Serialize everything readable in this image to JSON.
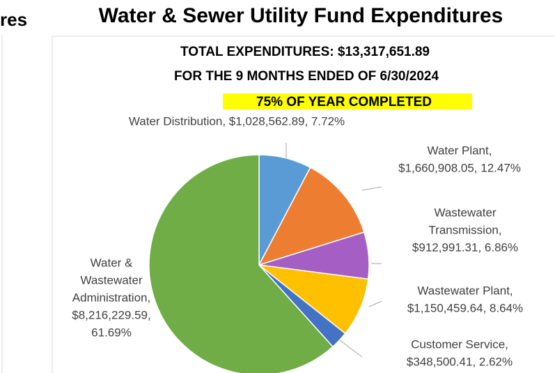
{
  "left_fragment": "res",
  "chart_data": {
    "type": "pie",
    "title": "Water & Sewer Utility Fund Expenditures",
    "subtitle": [
      "TOTAL EXPENDITURES: $13,317,651.89",
      "FOR THE 9 MONTHS ENDED OF 6/30/2024"
    ],
    "annotation": "75% OF YEAR COMPLETED",
    "values": [
      7.72,
      12.47,
      6.86,
      8.64,
      2.62,
      61.69
    ],
    "value_labels": [
      [
        "Water Distribution, $1,028,562.89, 7.72%"
      ],
      [
        "Water Plant,",
        "$1,660,908.05, 12.47%"
      ],
      [
        "Wastewater",
        "Transmission,",
        "$912,991.31, 6.86%"
      ],
      [
        "Wastewater Plant,",
        "$1,150,459.64, 8.64%"
      ],
      [
        "Customer Service,",
        "$348,500.41, 2.62%"
      ],
      [
        "Water &",
        "Wastewater",
        "Administration,",
        "$8,216,229.59,",
        "61.69%"
      ]
    ],
    "colors": [
      "#5b9bd5",
      "#ed7d31",
      "#a55fc4",
      "#ffc000",
      "#4472c4",
      "#70ad47"
    ]
  }
}
